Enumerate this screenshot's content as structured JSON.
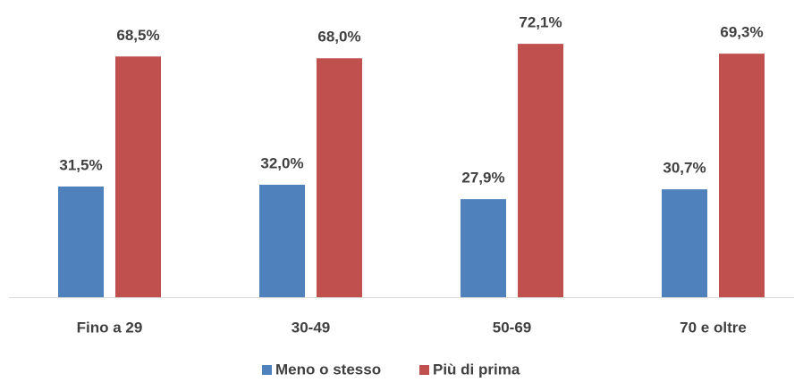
{
  "chart_data": {
    "type": "bar",
    "categories": [
      "Fino a 29",
      "30-49",
      "50-69",
      "70 e oltre"
    ],
    "series": [
      {
        "name": "Meno o stesso",
        "color": "#4f81bd",
        "values": [
          31.5,
          32.0,
          27.9,
          30.7
        ],
        "value_labels": [
          "31,5%",
          "32,0%",
          "27,9%",
          "30,7%"
        ]
      },
      {
        "name": "Più di prima",
        "color": "#c0504d",
        "values": [
          68.5,
          68.0,
          72.1,
          69.3
        ],
        "value_labels": [
          "68,5%",
          "68,0%",
          "72,1%",
          "69,3%"
        ]
      }
    ],
    "ylim": [
      0,
      80
    ],
    "legend": "bottom"
  }
}
